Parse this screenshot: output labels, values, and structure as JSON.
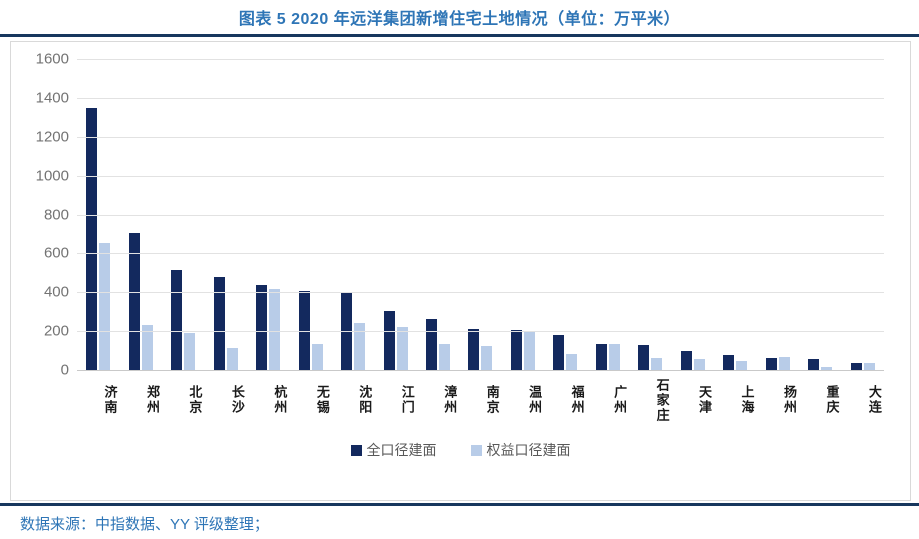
{
  "title": "图表 5 2020 年远洋集团新增住宅土地情况（单位：万平米）",
  "footer": {
    "source": "数据来源：中指数据、YY 评级整理；"
  },
  "colors": {
    "title_blue": "#2E75B6",
    "divider_navy": "#17375E",
    "full_caliber_bar": "#13295E",
    "equity_caliber_bar": "#B8CCE8",
    "gridline": "#E2E2E2",
    "axis_label": "#737373"
  },
  "chart_data": {
    "type": "bar",
    "title": "2020 年远洋集团新增住宅土地情况",
    "unit": "万平米",
    "categories": [
      "济南",
      "郑州",
      "北京",
      "长沙",
      "杭州",
      "无锡",
      "沈阳",
      "江门",
      "漳州",
      "南京",
      "温州",
      "福州",
      "广州",
      "石家庄",
      "天津",
      "上海",
      "扬州",
      "重庆",
      "大连"
    ],
    "series": [
      {
        "name": "全口径建面",
        "color": "#13295E",
        "values": [
          1350,
          705,
          517,
          478,
          437,
          405,
          398,
          306,
          263,
          212,
          208,
          180,
          133,
          130,
          100,
          76,
          64,
          55,
          36
        ]
      },
      {
        "name": "权益口径建面",
        "color": "#B8CCE8",
        "values": [
          655,
          230,
          190,
          115,
          415,
          136,
          240,
          220,
          133,
          126,
          200,
          80,
          135,
          64,
          58,
          47,
          67,
          18,
          38
        ]
      }
    ],
    "xlabel": "",
    "ylabel": "",
    "ylim": [
      0,
      1600
    ],
    "yticks": [
      0,
      200,
      400,
      600,
      800,
      1000,
      1200,
      1400,
      1600
    ],
    "grid": true,
    "legend_position": "bottom"
  }
}
